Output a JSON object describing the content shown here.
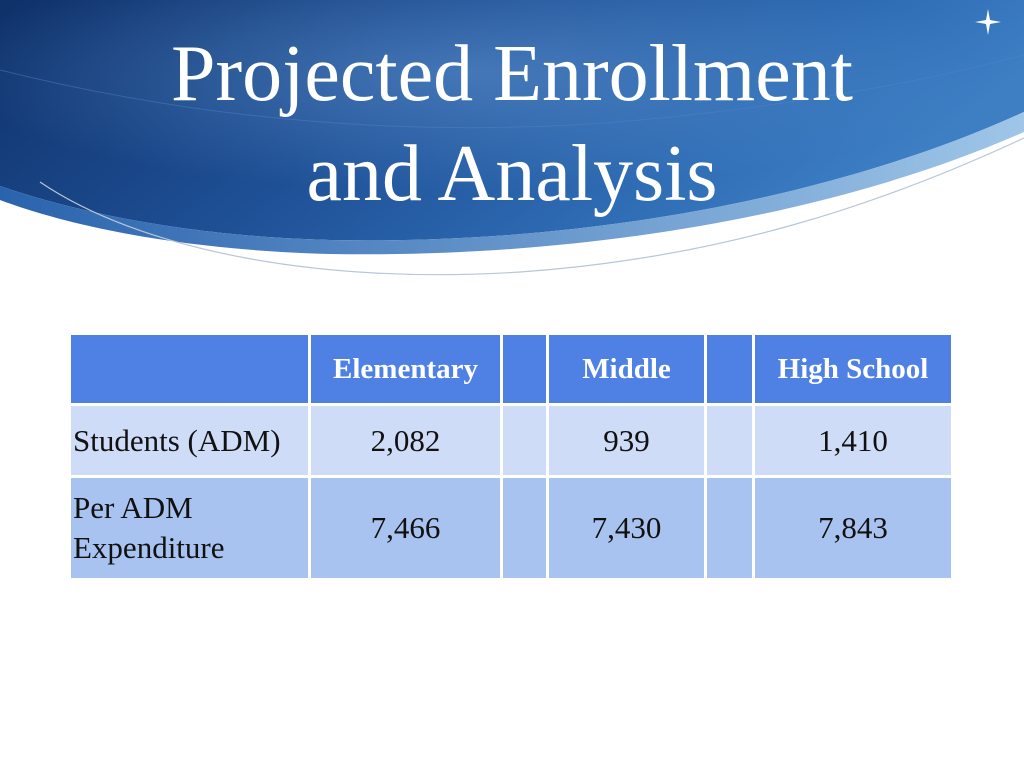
{
  "slide": {
    "title_line1": "Projected Enrollment",
    "title_line2": "and Analysis"
  },
  "table": {
    "headers": [
      "",
      "Elementary",
      "",
      "Middle",
      "",
      "High School"
    ],
    "rows": [
      {
        "label": "Students (ADM)",
        "values": [
          "2,082",
          "",
          "939",
          "",
          "1,410"
        ]
      },
      {
        "label_line1": "Per ADM",
        "label_line2": "Expenditure",
        "values": [
          "7,466",
          "",
          "7,430",
          "",
          "7,843"
        ]
      }
    ]
  },
  "colors": {
    "header_fill": "#4f81e4",
    "row1_fill": "#cfdcf7",
    "row2_fill": "#a9c3f0",
    "banner_dark": "#163a7a",
    "banner_light": "#5b9ed6"
  },
  "icons": {
    "corner": "four-point-star-icon"
  }
}
